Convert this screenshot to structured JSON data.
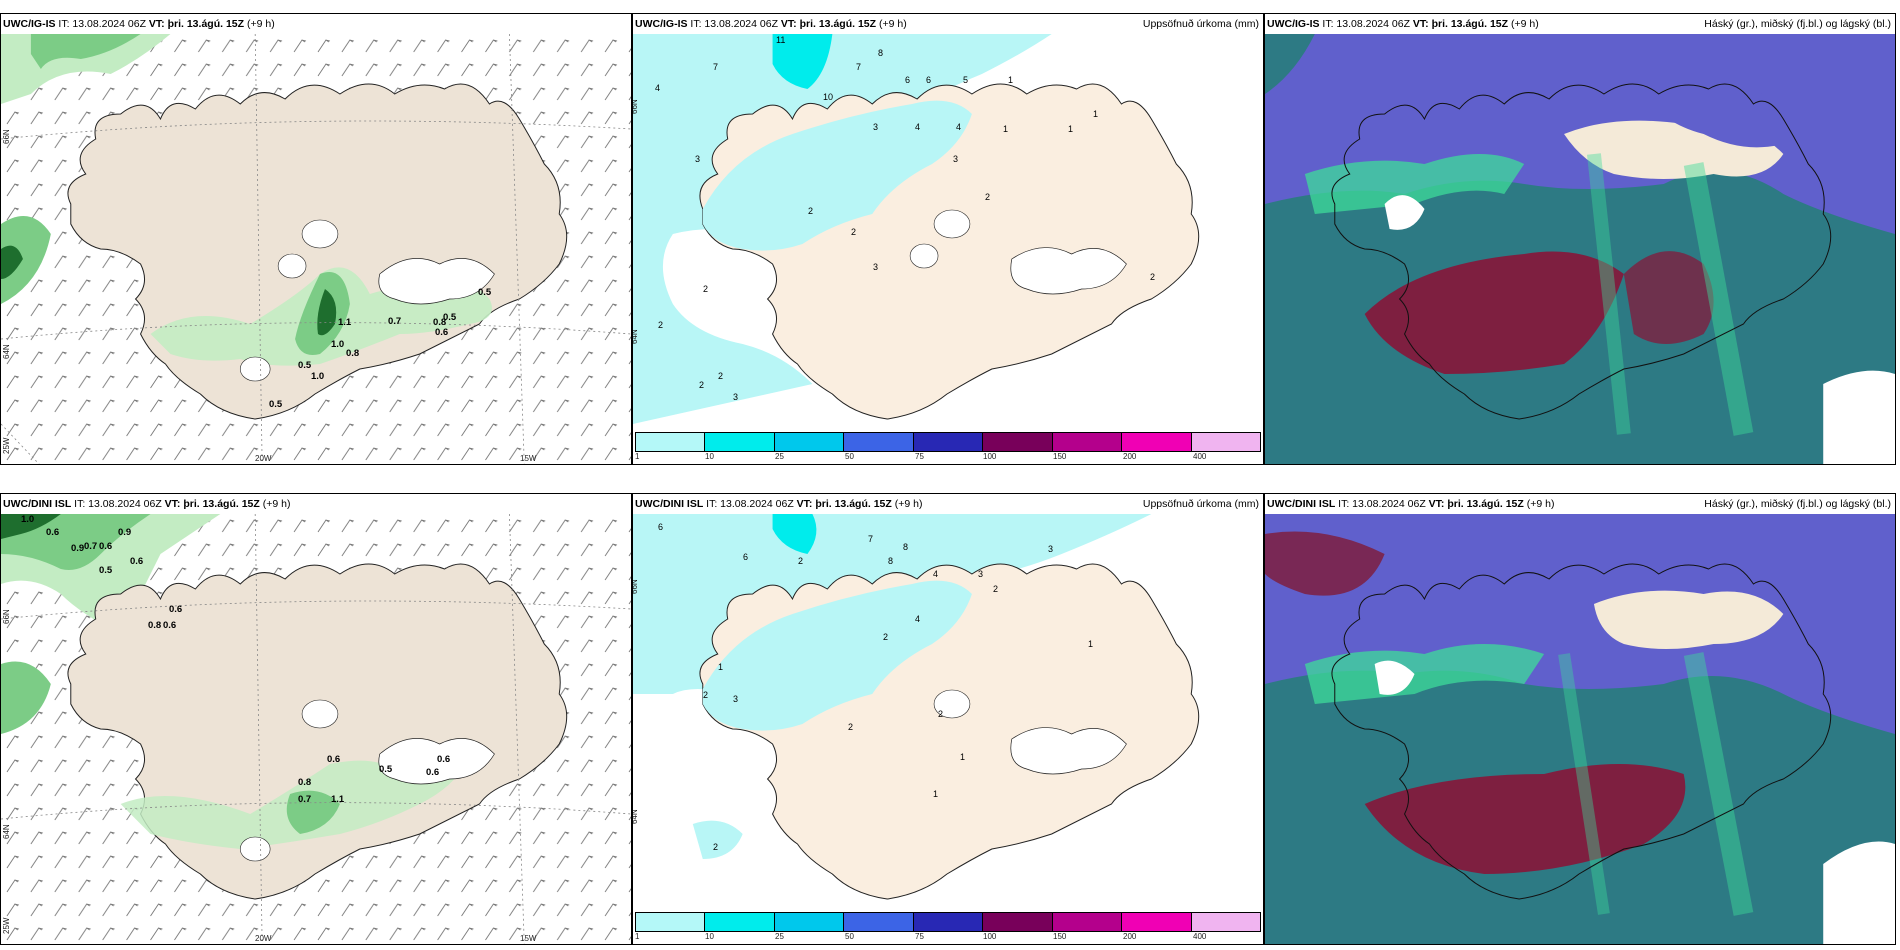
{
  "panels": [
    {
      "model": "UWC/IG-IS",
      "it": "IT: 13.08.2024 06Z",
      "vt_label": "VT:",
      "vt": "þri. 13.ágú. 15Z",
      "lead": "(+9 h)",
      "title": ""
    },
    {
      "model": "UWC/IG-IS",
      "it": "IT: 13.08.2024 06Z",
      "vt_label": "VT:",
      "vt": "þri. 13.ágú. 15Z",
      "lead": "(+9 h)",
      "title": "Uppsöfnuð úrkoma (mm)"
    },
    {
      "model": "UWC/IG-IS",
      "it": "IT: 13.08.2024 06Z",
      "vt_label": "VT:",
      "vt": "þri. 13.ágú. 15Z",
      "lead": "(+9 h)",
      "title": "Háský (gr.), miðský (fj.bl.) og lágský (bl.)"
    },
    {
      "model": "UWC/DINI ISL",
      "it": "IT: 13.08.2024 06Z",
      "vt_label": "VT:",
      "vt": "þri. 13.ágú. 15Z",
      "lead": "(+9 h)",
      "title": ""
    },
    {
      "model": "UWC/DINI ISL",
      "it": "IT: 13.08.2024 06Z",
      "vt_label": "VT:",
      "vt": "þri. 13.ágú. 15Z",
      "lead": "(+9 h)",
      "title": "Uppsöfnuð úrkoma (mm)"
    },
    {
      "model": "UWC/DINI ISL",
      "it": "IT: 13.08.2024 06Z",
      "vt_label": "VT:",
      "vt": "þri. 13.ágú. 15Z",
      "lead": "(+9 h)",
      "title": "Háský (gr.), miðský (fj.bl.) og lágský (bl.)"
    }
  ],
  "axes": {
    "lon_left": "20W",
    "lon_right": "15W",
    "lat_top": "66N",
    "lat_mid": "64N",
    "lon_corner": "25W"
  },
  "colorbar": {
    "ticks": [
      "1",
      "10",
      "25",
      "50",
      "75",
      "100",
      "150",
      "200",
      "400"
    ],
    "colors": [
      "#b4f8f8",
      "#00ecec",
      "#00c8ec",
      "#3c64e6",
      "#2828b4",
      "#78005a",
      "#b4008c",
      "#f000b4",
      "#f0b4f0"
    ]
  },
  "colors": {
    "land": "#f3e9dc",
    "land_wind": "#ede3d6",
    "precip_light": "#c3ecc3",
    "precip_mid": "#7ccc86",
    "precip_dark": "#1e6e2e",
    "sea_precip": "#b8f6f6",
    "high_cloud": "#3ddc9a",
    "mid_cloud": "#6060cc",
    "low_cloud": "#2d7a84",
    "red_cloud": "#7e1f40"
  },
  "wind_panel_values": {
    "top": [
      "1.1",
      "1.0",
      "0.7",
      "0.8",
      "0.5",
      "0.5",
      "0.6",
      "0.5",
      "0.5",
      "1.0",
      "0.8"
    ],
    "bottom": [
      "0.6",
      "0.9",
      "0.7",
      "0.6",
      "0.5",
      "0.6",
      "0.9",
      "0.8",
      "0.6",
      "1.1",
      "0.6",
      "0.7",
      "0.5",
      "0.6",
      "1.0",
      "0.6",
      "0.8",
      "0.6"
    ]
  },
  "precip_values": {
    "top": [
      "11",
      "7",
      "8",
      "7",
      "4",
      "6",
      "6",
      "5",
      "10",
      "3",
      "4",
      "4",
      "3",
      "3",
      "2",
      "2",
      "1",
      "2",
      "2",
      "2",
      "1",
      "3",
      "2",
      "2",
      "1",
      "1",
      "2",
      "3"
    ],
    "bottom": [
      "6",
      "7",
      "6",
      "8",
      "8",
      "2",
      "1",
      "3",
      "4",
      "4",
      "3",
      "2",
      "2",
      "1",
      "2",
      "2",
      "2",
      "3",
      "1",
      "1",
      "2"
    ]
  }
}
